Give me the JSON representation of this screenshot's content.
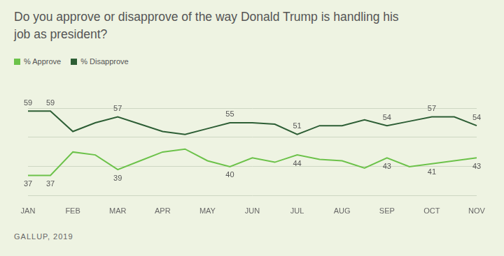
{
  "chart_data": {
    "type": "line",
    "title": "Do you approve or disapprove of the way Donald Trump is handling his job as president?",
    "note": "GALLUP, 2019",
    "categories": [
      "JAN",
      null,
      "FEB",
      null,
      "MAR",
      null,
      "APR",
      null,
      "MAY",
      null,
      "JUN",
      null,
      "JUL",
      null,
      "AUG",
      null,
      "SEP",
      null,
      "OCT",
      null,
      "NOV"
    ],
    "series": [
      {
        "name": "% Approve",
        "color": "#6cc24a",
        "values": [
          37,
          37,
          45,
          44,
          39,
          42,
          45,
          46,
          42,
          40,
          43,
          41.5,
          44,
          42.5,
          42,
          39.5,
          43,
          40,
          41,
          42,
          43
        ],
        "value_labels": [
          "37",
          "37",
          null,
          null,
          "39",
          null,
          null,
          null,
          null,
          "40",
          null,
          null,
          "44",
          null,
          null,
          null,
          "43",
          null,
          "41",
          null,
          "43"
        ]
      },
      {
        "name": "% Disapprove",
        "color": "#2d5e35",
        "values": [
          59,
          59,
          52,
          55,
          57,
          54.5,
          52,
          51,
          53,
          55,
          55,
          54.5,
          51,
          54,
          54,
          56,
          54,
          55.5,
          57,
          57,
          54
        ],
        "value_labels": [
          "59",
          "59",
          null,
          null,
          "57",
          null,
          null,
          null,
          null,
          "55",
          null,
          null,
          "51",
          null,
          null,
          null,
          "54",
          null,
          "57",
          null,
          "54"
        ]
      }
    ],
    "ylim": [
      30,
      60
    ],
    "yticks": [
      30,
      40,
      50,
      60
    ],
    "grid": true,
    "legend": "top-left",
    "data_labels": true,
    "tick_labels": "x"
  }
}
